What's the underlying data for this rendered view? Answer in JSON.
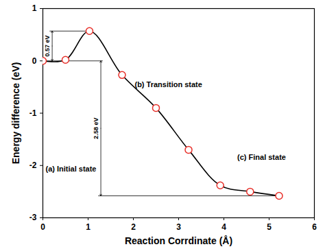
{
  "chart_data": {
    "type": "line",
    "x_label": "Reaction Corrdinate (Å)",
    "y_label": "Energy difference (eV)",
    "x": [
      0,
      0.5,
      1.03,
      1.75,
      2.5,
      3.22,
      3.92,
      4.58,
      5.22
    ],
    "values": [
      0,
      0.02,
      0.57,
      -0.27,
      -0.9,
      -1.7,
      -2.38,
      -2.5,
      -2.58
    ],
    "color": "#000000",
    "marker": "open circle",
    "xlim": [
      0,
      6
    ],
    "xticks": [
      0,
      1,
      2,
      3,
      4,
      5,
      6
    ],
    "ylim": [
      -3,
      1
    ],
    "yticks": [
      -3,
      -2,
      -1,
      0,
      1
    ],
    "annotations": [
      "0.57 eV",
      "2.58 eV",
      "(a) Initial state",
      "(b) Transition state",
      "(c) Final state"
    ]
  }
}
